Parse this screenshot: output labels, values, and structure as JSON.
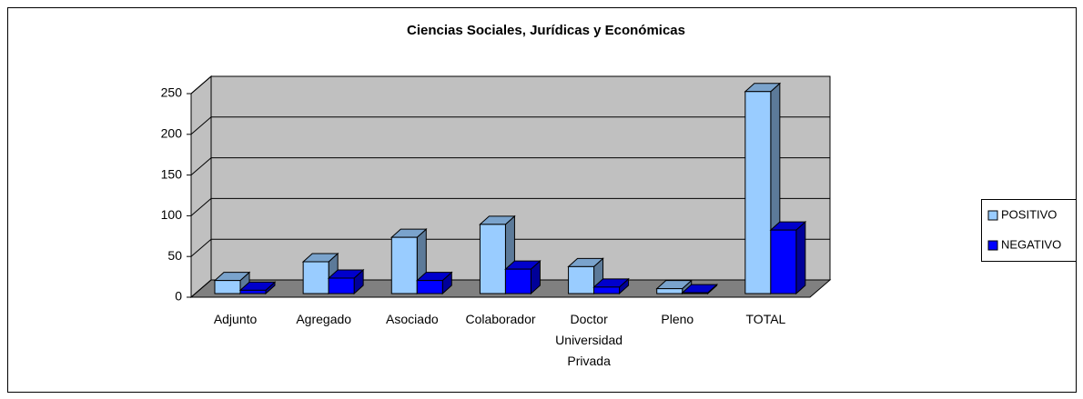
{
  "chart_data": {
    "type": "bar3d",
    "title": "Ciencias Sociales, Jurídicas y Económicas",
    "categories": [
      "Adjunto",
      "Agregado",
      "Asociado",
      "Colaborador",
      "Doctor Universidad Privada",
      "Pleno",
      "TOTAL"
    ],
    "series": [
      {
        "name": "POSITIVO",
        "color": "#99ccff",
        "values": [
          16,
          39,
          69,
          85,
          33,
          6,
          248
        ]
      },
      {
        "name": "NEGATIVO",
        "color": "#0000ff",
        "values": [
          4,
          19,
          16,
          30,
          8,
          1,
          78
        ]
      }
    ],
    "ylim": [
      0,
      250
    ],
    "yticks": [
      0,
      50,
      100,
      150,
      200,
      250
    ],
    "grid": true,
    "legend": "right"
  }
}
